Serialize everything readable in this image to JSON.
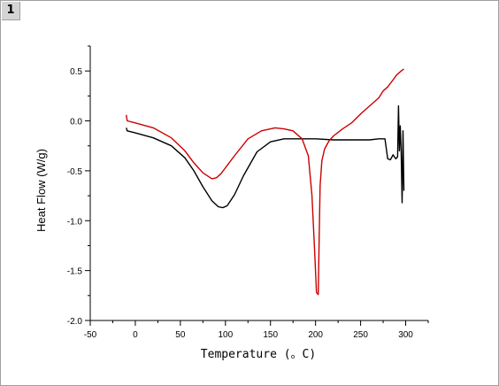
{
  "window": {
    "tab_label": "1"
  },
  "chart_data": {
    "type": "line",
    "xlabel": "Temperature (。C)",
    "ylabel": "Heat Flow (W/g)",
    "xlim": [
      -50,
      325
    ],
    "ylim": [
      -2.0,
      0.75
    ],
    "xticks": [
      -50,
      0,
      50,
      100,
      150,
      200,
      250,
      300
    ],
    "yticks": [
      -2.0,
      -1.5,
      -1.0,
      -0.5,
      0.0,
      0.5
    ],
    "xtick_labels": [
      "-50",
      "0",
      "50",
      "100",
      "150",
      "200",
      "250",
      "300"
    ],
    "ytick_labels": [
      "-2.0",
      "-1.5",
      "-1.0",
      "-0.5",
      "0.0",
      "0.5"
    ],
    "grid": false,
    "series": [
      {
        "color": "#000000",
        "x": [
          -10,
          -9,
          0,
          20,
          40,
          55,
          65,
          75,
          85,
          92,
          97,
          102,
          110,
          120,
          135,
          150,
          165,
          180,
          200,
          220,
          240,
          260,
          270,
          277,
          280,
          283,
          286,
          289,
          291,
          292,
          293,
          294,
          295,
          296,
          297,
          298
        ],
        "y": [
          -0.07,
          -0.1,
          -0.12,
          -0.17,
          -0.25,
          -0.37,
          -0.5,
          -0.66,
          -0.8,
          -0.86,
          -0.87,
          -0.85,
          -0.74,
          -0.55,
          -0.31,
          -0.21,
          -0.18,
          -0.18,
          -0.18,
          -0.19,
          -0.19,
          -0.19,
          -0.18,
          -0.18,
          -0.38,
          -0.39,
          -0.34,
          -0.38,
          -0.36,
          0.15,
          -0.3,
          -0.05,
          -0.3,
          -0.82,
          -0.1,
          -0.7
        ]
      },
      {
        "color": "#cc0000",
        "x": [
          -10,
          -9,
          0,
          20,
          40,
          55,
          65,
          75,
          85,
          90,
          95,
          110,
          125,
          140,
          155,
          165,
          175,
          185,
          192,
          196,
          199,
          201,
          203,
          204,
          205,
          207,
          210,
          215,
          220,
          230,
          240,
          250,
          260,
          270,
          275,
          280,
          285,
          290,
          295,
          298
        ],
        "y": [
          0.06,
          0.0,
          -0.02,
          -0.07,
          -0.17,
          -0.3,
          -0.42,
          -0.52,
          -0.58,
          -0.57,
          -0.53,
          -0.35,
          -0.18,
          -0.1,
          -0.07,
          -0.08,
          -0.1,
          -0.18,
          -0.35,
          -0.75,
          -1.3,
          -1.72,
          -1.74,
          -1.2,
          -0.65,
          -0.4,
          -0.28,
          -0.2,
          -0.15,
          -0.08,
          -0.02,
          0.07,
          0.15,
          0.23,
          0.3,
          0.34,
          0.4,
          0.46,
          0.5,
          0.52
        ]
      }
    ]
  }
}
